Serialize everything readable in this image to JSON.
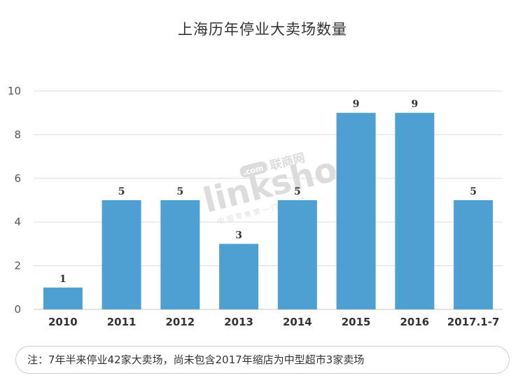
{
  "chart_data": {
    "type": "bar",
    "title": "上海历年停业大卖场数量",
    "categories": [
      "2010",
      "2011",
      "2012",
      "2013",
      "2014",
      "2015",
      "2016",
      "2017.1-7"
    ],
    "values": [
      1,
      5,
      5,
      3,
      5,
      9,
      9,
      5
    ],
    "ylim": [
      0,
      10
    ],
    "yticks": [
      0,
      2,
      4,
      6,
      8,
      10
    ],
    "grid": true,
    "bar_color": "#4e9fd2",
    "xlabel": "",
    "ylabel": ""
  },
  "watermark": {
    "brand_text": "linkshop",
    "brand_domain": ".com",
    "brand_cn": "联商网",
    "tagline": "中 国 零 售 第 一 门 户 网 站"
  },
  "note": "注：7年半来停业42家大卖场，尚未包含2017年缩店为中型超市3家卖场"
}
